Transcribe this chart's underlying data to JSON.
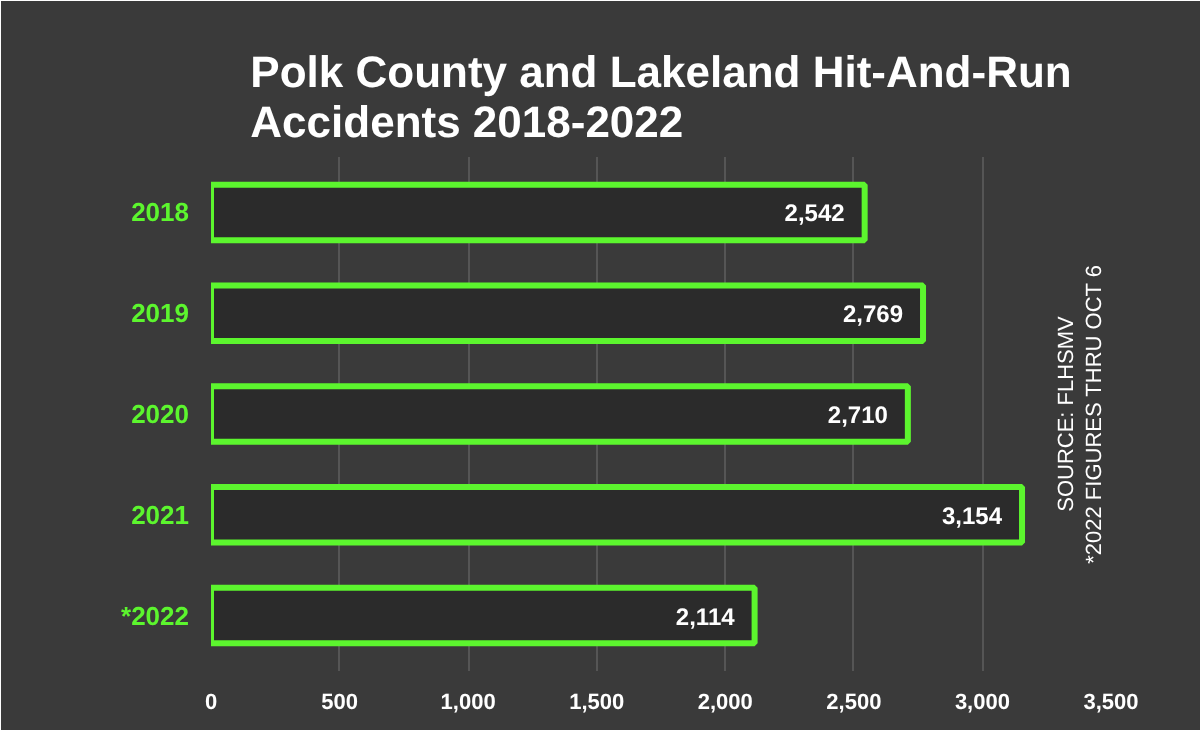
{
  "chart_data": {
    "type": "bar",
    "orientation": "horizontal",
    "title": "Polk County and Lakeland Hit-And-Run Accidents 2018-2022",
    "categories": [
      "2018",
      "2019",
      "2020",
      "2021",
      "*2022"
    ],
    "values": [
      2542,
      2769,
      2710,
      3154,
      2114
    ],
    "color": "#5cf52e",
    "xlim": [
      0,
      3500
    ],
    "xticks": [
      0,
      500,
      {
        "value": 1000,
        "label": "1,000"
      },
      {
        "value": 1500,
        "label": "1,500"
      },
      {
        "value": 2000,
        "label": "2,000"
      },
      {
        "value": 2500,
        "label": "2,500"
      },
      {
        "value": 3000,
        "label": "3,000"
      },
      {
        "value": 3500,
        "label": "3,500"
      }
    ],
    "grid": "x",
    "value_labels": [
      "2,542",
      "2,769",
      "2,710",
      "3,154",
      "2,114"
    ],
    "annotations": [
      "SOURCE: FLHSMV",
      "*2022 FIGURES THRU OCT 6"
    ]
  }
}
